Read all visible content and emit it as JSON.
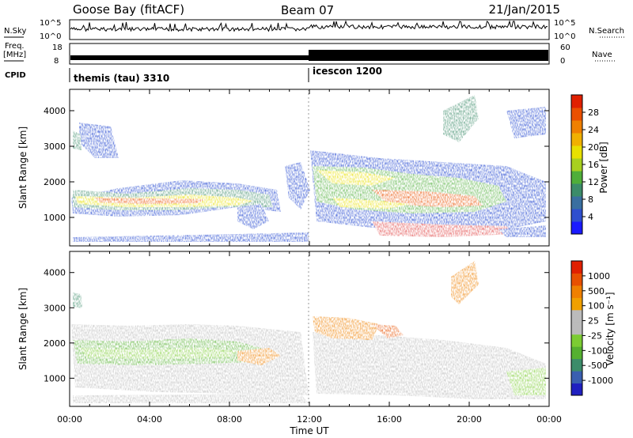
{
  "header": {
    "station": "Goose Bay (fitACF)",
    "beam": "Beam 07",
    "date": "21/Jan/2015"
  },
  "panels": {
    "nsky_label": "N.Sky",
    "nsky_ticks": [
      "10^5",
      "10^0"
    ],
    "nsearch_label": "N.Search",
    "freq_label_1": "Freq.",
    "freq_label_2": "[MHz]",
    "freq_ticks": [
      "18",
      "8"
    ],
    "nave_label": "Nave",
    "nave_ticks": [
      "60",
      "0"
    ],
    "cpid_label": "CPID",
    "cpid_1": "themis (tau) 3310",
    "cpid_2": "icescon 1200"
  },
  "chart_data": [
    {
      "type": "heatmap",
      "name": "power",
      "xlabel": "Time UT",
      "ylabel": "Slant Range [km]",
      "x_ticks": [
        "00:00",
        "04:00",
        "08:00",
        "12:00",
        "16:00",
        "20:00",
        "00:00"
      ],
      "x_range_hours": [
        0,
        24
      ],
      "y_ticks": [
        1000,
        2000,
        3000,
        4000
      ],
      "ylim": [
        200,
        4600
      ],
      "colorbar": {
        "label": "Power [dB]",
        "ticks": [
          "4",
          "8",
          "12",
          "16",
          "20",
          "24",
          "28"
        ],
        "colors": [
          "#1a1aff",
          "#2f4fcf",
          "#3a6fa0",
          "#3c8c6a",
          "#4fae3a",
          "#a8d020",
          "#e8e000",
          "#f0b000",
          "#ef8000",
          "#ea5000",
          "#e02000"
        ]
      }
    },
    {
      "type": "heatmap",
      "name": "velocity",
      "xlabel": "Time UT",
      "ylabel": "Slant Range [km]",
      "x_ticks": [
        "00:00",
        "04:00",
        "08:00",
        "12:00",
        "16:00",
        "20:00",
        "00:00"
      ],
      "x_range_hours": [
        0,
        24
      ],
      "y_ticks": [
        1000,
        2000,
        3000,
        4000
      ],
      "ylim": [
        200,
        4600
      ],
      "colorbar": {
        "label": "Velocity [m s⁻¹]",
        "ticks": [
          "1000",
          "500",
          "100",
          "25",
          "-25",
          "-100",
          "-500",
          "-1000"
        ],
        "colors": [
          "#2020c0",
          "#3a5fb0",
          "#3c8c6a",
          "#55b030",
          "#7ccc33",
          "#bbbbbb",
          "#bbbbbb",
          "#f0a000",
          "#ef8000",
          "#e85000",
          "#e02000"
        ]
      }
    }
  ]
}
